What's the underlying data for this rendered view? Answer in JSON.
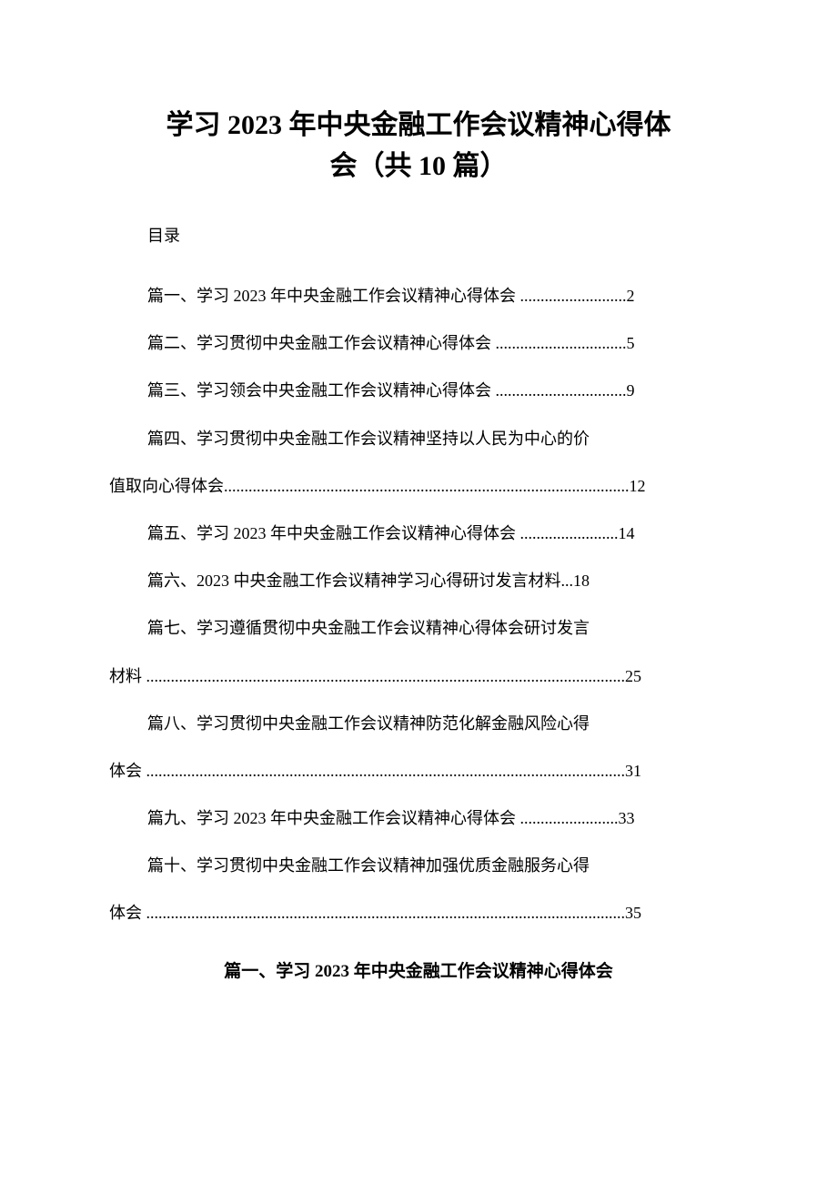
{
  "title_line1": "学习 2023 年中央金融工作会议精神心得体",
  "title_line2": "会（共 10 篇）",
  "toc_label": "目录",
  "toc": [
    {
      "type": "single",
      "text": "篇一、学习 2023 年中央金融工作会议精神心得体会 ..........................2"
    },
    {
      "type": "single",
      "text": "篇二、学习贯彻中央金融工作会议精神心得体会 ................................5"
    },
    {
      "type": "single",
      "text": "篇三、学习领会中央金融工作会议精神心得体会 ................................9"
    },
    {
      "type": "wrap",
      "line1": "篇四、学习贯彻中央金融工作会议精神坚持以人民为中心的价",
      "line2": "值取向心得体会...................................................................................................12"
    },
    {
      "type": "single",
      "text": "篇五、学习 2023 年中央金融工作会议精神心得体会 ........................14"
    },
    {
      "type": "single",
      "text": "篇六、2023 中央金融工作会议精神学习心得研讨发言材料...18"
    },
    {
      "type": "wrap",
      "line1": "篇七、学习遵循贯彻中央金融工作会议精神心得体会研讨发言",
      "line2": "材料 .....................................................................................................................25"
    },
    {
      "type": "wrap",
      "line1": "篇八、学习贯彻中央金融工作会议精神防范化解金融风险心得",
      "line2": "体会 .....................................................................................................................31"
    },
    {
      "type": "single",
      "text": "篇九、学习 2023 年中央金融工作会议精神心得体会 ........................33"
    },
    {
      "type": "wrap",
      "line1": "篇十、学习贯彻中央金融工作会议精神加强优质金融服务心得",
      "line2": "体会 .....................................................................................................................35"
    }
  ],
  "section_heading": "篇一、学习 2023 年中央金融工作会议精神心得体会",
  "colors": {
    "text": "#000000",
    "background": "#ffffff"
  },
  "typography": {
    "title_fontsize": 30,
    "body_fontsize": 18,
    "heading_fontsize": 19,
    "line_height": 2.9
  }
}
